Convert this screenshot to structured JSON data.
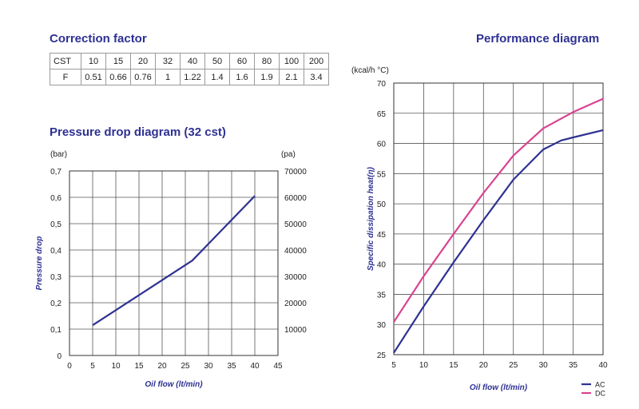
{
  "correction": {
    "title": "Correction factor",
    "row_labels": [
      "CST",
      "F"
    ],
    "cst": [
      "10",
      "15",
      "20",
      "32",
      "40",
      "50",
      "60",
      "80",
      "100",
      "200"
    ],
    "f": [
      "0.51",
      "0.66",
      "0.76",
      "1",
      "1.22",
      "1.4",
      "1.6",
      "1.9",
      "2.1",
      "3.4"
    ]
  },
  "pressure_title": "Pressure drop diagram (32 cst)",
  "performance_title": "Performance diagram",
  "chart_data": [
    {
      "type": "line",
      "title": "Pressure drop diagram (32 cst)",
      "xlabel": "Oil flow (lt/min)",
      "ylabel": "Pressure drop",
      "y_unit": "(bar)",
      "y2_unit": "(pa)",
      "xlim": [
        0,
        45
      ],
      "ylim": [
        0,
        0.7
      ],
      "y2lim": [
        0,
        70000
      ],
      "xticks": [
        "0",
        "5",
        "10",
        "15",
        "20",
        "25",
        "30",
        "35",
        "40",
        "45"
      ],
      "yticks": [
        "0",
        "0,1",
        "0,2",
        "0,3",
        "0,4",
        "0,5",
        "0,6",
        "0,7"
      ],
      "y2ticks": [
        "10000",
        "20000",
        "30000",
        "40000",
        "50000",
        "60000",
        "70000"
      ],
      "grid": true,
      "series": [
        {
          "color": "#2e3192",
          "x": [
            5,
            26.5,
            40
          ],
          "y": [
            0.115,
            0.36,
            0.605
          ]
        }
      ]
    },
    {
      "type": "line",
      "title": "Performance diagram",
      "xlabel": "Oil flow (lt/min)",
      "ylabel": "Specific dissipation heat(η)",
      "y_unit": "(kcal/h °C)",
      "xlim": [
        5,
        40
      ],
      "ylim": [
        25,
        70
      ],
      "xticks": [
        "5",
        "10",
        "15",
        "20",
        "25",
        "30",
        "35",
        "40"
      ],
      "yticks": [
        "25",
        "30",
        "35",
        "40",
        "45",
        "50",
        "55",
        "60",
        "65",
        "70"
      ],
      "grid": true,
      "legend": "bottom-right",
      "series": [
        {
          "name": "AC",
          "color": "#2e3192",
          "x": [
            5,
            10,
            15,
            20,
            25,
            30,
            33,
            35,
            40
          ],
          "y": [
            25.3,
            33,
            40.3,
            47.3,
            54,
            59,
            60.5,
            61,
            62.2
          ]
        },
        {
          "name": "DC",
          "color": "#d9428f",
          "x": [
            5,
            10,
            15,
            20,
            25,
            30,
            35,
            40
          ],
          "y": [
            30.4,
            38,
            45,
            51.8,
            58,
            62.5,
            65.2,
            67.4
          ]
        }
      ]
    }
  ]
}
